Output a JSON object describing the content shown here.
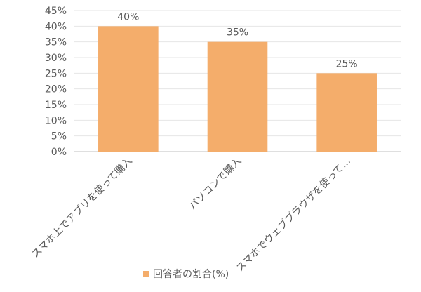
{
  "chart_data": {
    "type": "bar",
    "categories": [
      "スマホ上でアプリを使って購入",
      "パソコンで購入",
      "スマホでウェブブラウザを使って…"
    ],
    "series": [
      {
        "name": "回答者の割合(%)",
        "values": [
          40,
          35,
          25
        ],
        "color": "#f4ad6b"
      }
    ],
    "data_labels": [
      "40%",
      "35%",
      "25%"
    ],
    "y_ticks": [
      "0%",
      "5%",
      "10%",
      "15%",
      "20%",
      "25%",
      "30%",
      "35%",
      "40%",
      "45%"
    ],
    "ylim": [
      0,
      45
    ],
    "grid": true,
    "legend_position": "bottom",
    "title": "",
    "xlabel": "",
    "ylabel": ""
  }
}
